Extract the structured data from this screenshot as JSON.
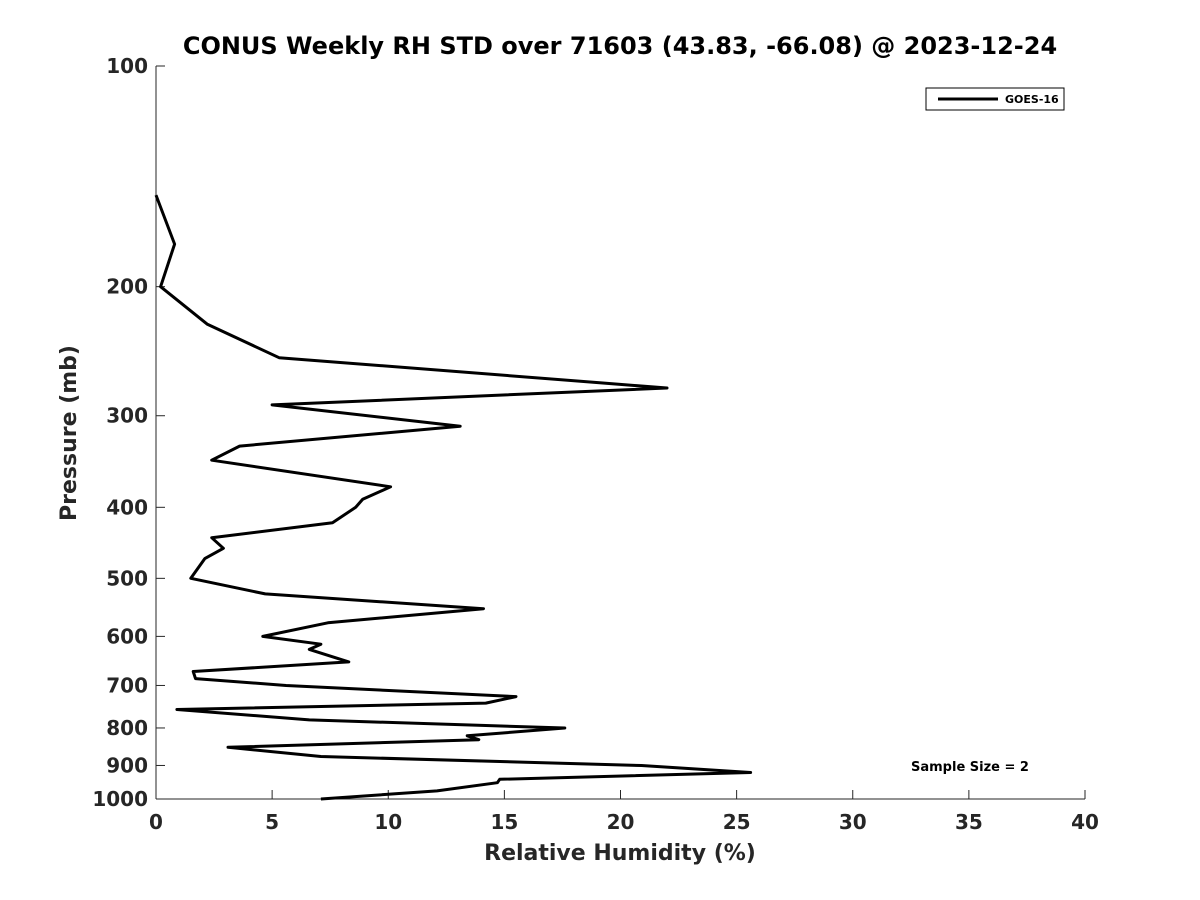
{
  "chart_data": {
    "type": "line",
    "title": "CONUS Weekly RH STD over 71603 (43.83, -66.08) @ 2023-12-24",
    "xlabel": "Relative Humidity (%)",
    "ylabel": "Pressure (mb)",
    "xlim": [
      0,
      40
    ],
    "ylim": [
      100,
      1000
    ],
    "yscale": "log",
    "yreversed": true,
    "grid": false,
    "legend_position": "top-right",
    "xticks": [
      0,
      5,
      10,
      15,
      20,
      25,
      30,
      35,
      40
    ],
    "xtick_labels": [
      "0",
      "5",
      "10",
      "15",
      "20",
      "25",
      "30",
      "35",
      "40"
    ],
    "yticks": [
      100,
      200,
      300,
      400,
      500,
      600,
      700,
      800,
      900,
      1000
    ],
    "ytick_labels": [
      "100",
      "200",
      "300",
      "400",
      "500",
      "600",
      "700",
      "800",
      "900",
      "1000"
    ],
    "series": [
      {
        "name": "GOES-16",
        "color": "#000000",
        "rh": [
          0.0,
          0.8,
          0.2,
          2.2,
          5.3,
          22.0,
          5.0,
          13.1,
          3.6,
          2.4,
          10.1,
          8.9,
          8.6,
          7.6,
          2.4,
          2.9,
          2.1,
          1.5,
          4.7,
          14.1,
          7.4,
          4.6,
          7.1,
          6.6,
          8.3,
          1.6,
          1.7,
          5.6,
          15.5,
          14.2,
          0.9,
          6.6,
          17.6,
          13.4,
          13.9,
          3.1,
          7.1,
          20.9,
          25.6,
          14.8,
          14.7,
          12.1,
          7.1
        ],
        "pressure": [
          150,
          175,
          200,
          225,
          250,
          275,
          290,
          310,
          330,
          345,
          375,
          390,
          400,
          420,
          440,
          455,
          470,
          500,
          525,
          550,
          575,
          600,
          615,
          625,
          650,
          670,
          685,
          700,
          725,
          740,
          755,
          780,
          800,
          820,
          830,
          850,
          875,
          900,
          920,
          940,
          950,
          975,
          1000
        ]
      }
    ],
    "annotations": [
      {
        "text": "Sample Size = 2",
        "position": "bottom-right"
      }
    ]
  }
}
